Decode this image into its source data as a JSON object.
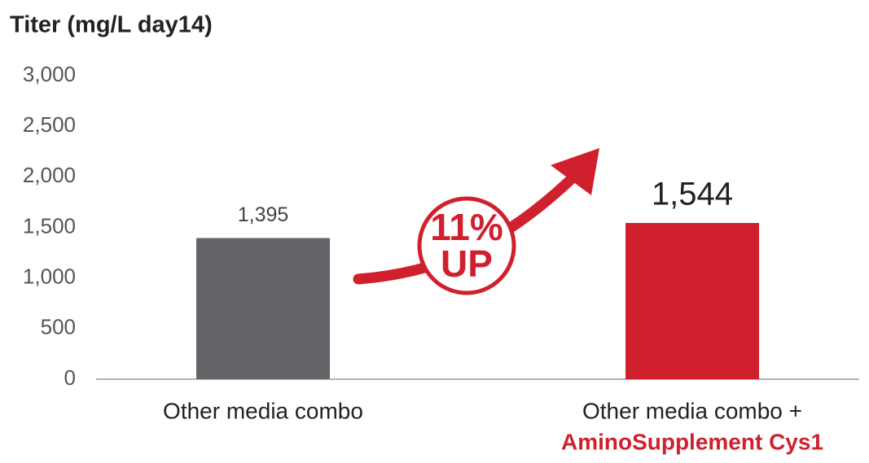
{
  "chart_data": {
    "type": "bar",
    "title": "Titer (mg/L day14)",
    "categories": [
      "Other media combo",
      "Other media combo +"
    ],
    "category_sublabels": [
      null,
      "AminoSupplement Cys1"
    ],
    "values": [
      1395,
      1544
    ],
    "value_labels": [
      "1,395",
      "1,544"
    ],
    "colors": [
      "#646569",
      "#d0202e"
    ],
    "ylim": [
      0,
      3000
    ],
    "yticks": [
      0,
      500,
      {
        "value": 1000,
        "label": "1,000"
      },
      {
        "value": 1500,
        "label": "1,500"
      },
      {
        "value": 2000,
        "label": "2,000"
      },
      {
        "value": 2500,
        "label": "2,500"
      },
      {
        "value": 3000,
        "label": "3,000"
      }
    ],
    "grid": false,
    "annotation": {
      "lines": [
        "11%",
        "UP"
      ],
      "color": "#d0202e"
    }
  }
}
